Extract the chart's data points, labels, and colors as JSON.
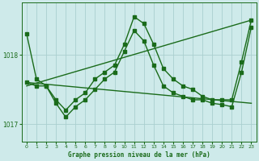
{
  "title": "Graphe pression niveau de la mer (hPa)",
  "background_color": "#ceeaea",
  "grid_color": "#aacfcf",
  "line_color": "#1a6b1a",
  "xlim": [
    -0.5,
    23.5
  ],
  "ylim": [
    1016.75,
    1018.75
  ],
  "yticks": [
    1017,
    1018
  ],
  "xticks": [
    0,
    1,
    2,
    3,
    4,
    5,
    6,
    7,
    8,
    9,
    10,
    11,
    12,
    13,
    14,
    15,
    16,
    17,
    18,
    19,
    20,
    21,
    22,
    23
  ],
  "series": [
    {
      "x": [
        0,
        1,
        2,
        3,
        4,
        5,
        6,
        7,
        8,
        9,
        10,
        11,
        12,
        13,
        14,
        15,
        16,
        17,
        18,
        19,
        20,
        21,
        22,
        23
      ],
      "y": [
        1018.3,
        1017.65,
        1017.55,
        1017.35,
        1017.2,
        1017.35,
        1017.45,
        1017.65,
        1017.75,
        1017.85,
        1018.15,
        1018.55,
        1018.45,
        1018.15,
        1017.8,
        1017.65,
        1017.55,
        1017.5,
        1017.4,
        1017.35,
        1017.35,
        1017.35,
        1017.9,
        1018.5
      ],
      "marker": "s",
      "markersize": 2.5,
      "linewidth": 1.0
    },
    {
      "x": [
        0,
        1,
        2,
        3,
        4,
        5,
        6,
        7,
        8,
        9,
        10,
        11,
        12,
        13,
        14,
        15,
        16,
        17,
        18,
        19,
        20,
        21,
        22,
        23
      ],
      "y": [
        1017.6,
        1017.55,
        1017.55,
        1017.3,
        1017.1,
        1017.25,
        1017.35,
        1017.5,
        1017.65,
        1017.75,
        1018.05,
        1018.35,
        1018.2,
        1017.85,
        1017.55,
        1017.45,
        1017.4,
        1017.35,
        1017.35,
        1017.3,
        1017.28,
        1017.25,
        1017.75,
        1018.4
      ],
      "marker": "s",
      "markersize": 2.5,
      "linewidth": 1.0
    },
    {
      "x": [
        0,
        23
      ],
      "y": [
        1017.55,
        1018.5
      ],
      "marker": null,
      "markersize": 0,
      "linewidth": 1.0,
      "linestyle": "-"
    },
    {
      "x": [
        0,
        23
      ],
      "y": [
        1017.6,
        1017.3
      ],
      "marker": null,
      "markersize": 0,
      "linewidth": 1.0,
      "linestyle": "-"
    }
  ]
}
